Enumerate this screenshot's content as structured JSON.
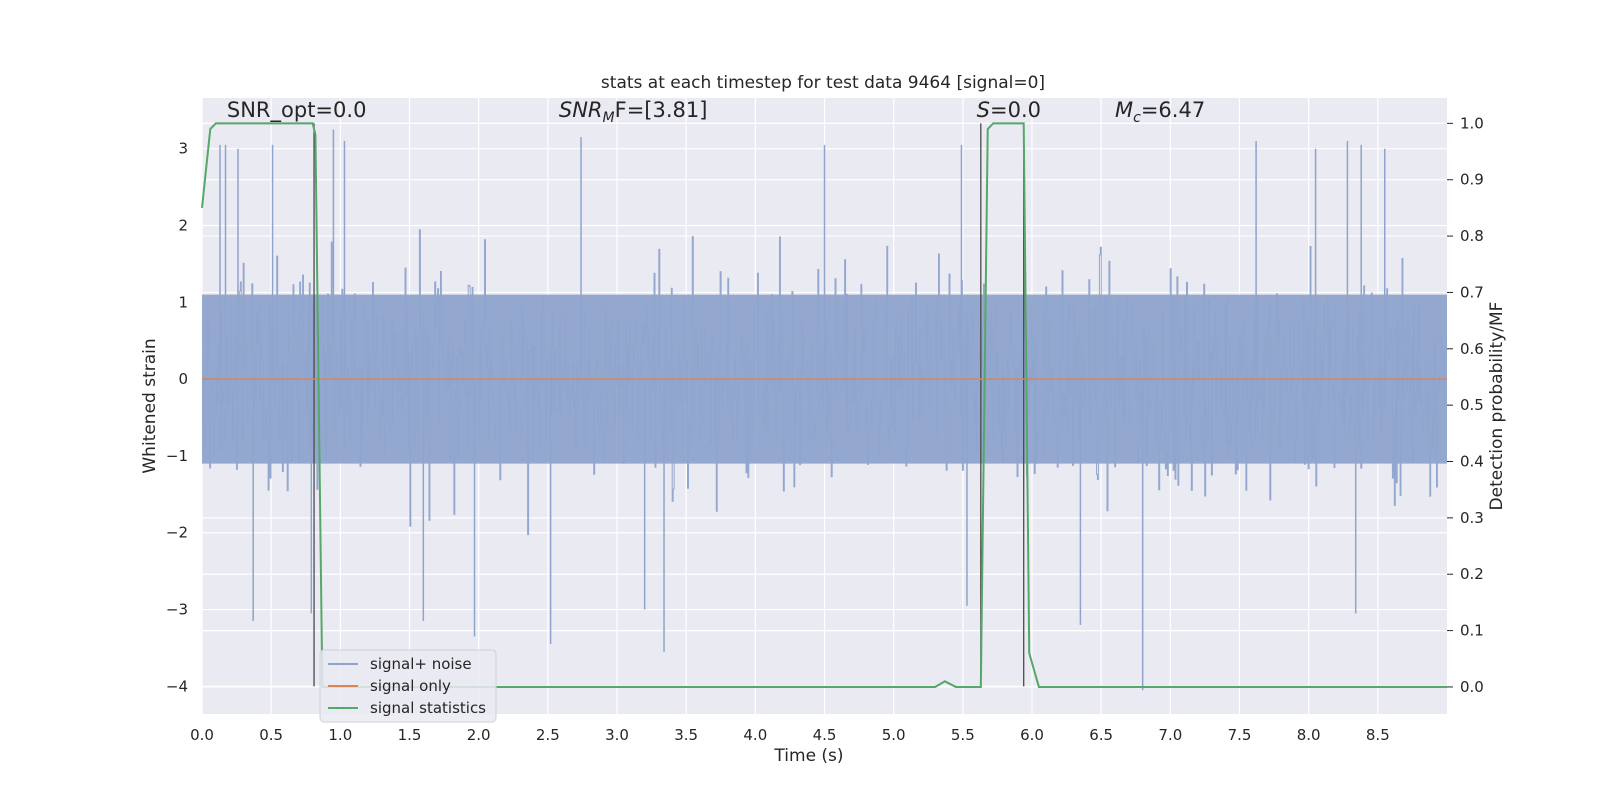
{
  "chart_data": {
    "type": "line",
    "title": "stats at each timestep for test data 9464 [signal=0]",
    "xlabel": "Time (s)",
    "ylabel": "Whitened strain",
    "y2label": "Detection probability/MF",
    "xlim": [
      0.0,
      9.0
    ],
    "ylim": [
      -4.36,
      3.66
    ],
    "y2lim": [
      -0.048,
      1.045
    ],
    "grid": true,
    "x_ticks": [
      0.0,
      0.5,
      1.0,
      1.5,
      2.0,
      2.5,
      3.0,
      3.5,
      4.0,
      4.5,
      5.0,
      5.5,
      6.0,
      6.5,
      7.0,
      7.5,
      8.0,
      8.5
    ],
    "x_tick_labels": [
      "0.0",
      "0.5",
      "1.0",
      "1.5",
      "2.0",
      "2.5",
      "3.0",
      "3.5",
      "4.0",
      "4.5",
      "5.0",
      "5.5",
      "6.0",
      "6.5",
      "7.0",
      "7.5",
      "8.0",
      "8.5"
    ],
    "y_ticks": [
      3,
      2,
      1,
      0,
      -1,
      -2,
      -3,
      -4
    ],
    "y_tick_labels": [
      "3",
      "2",
      "1",
      "0",
      "−1",
      "−2",
      "−3",
      "−4"
    ],
    "y2_ticks": [
      1.0,
      0.9,
      0.8,
      0.7,
      0.6,
      0.5,
      0.4,
      0.3,
      0.2,
      0.1,
      0.0
    ],
    "y2_tick_labels": [
      "1.0",
      "0.9",
      "0.8",
      "0.7",
      "0.6",
      "0.5",
      "0.4",
      "0.3",
      "0.2",
      "0.1",
      "0.0"
    ],
    "annotations": [
      {
        "text": "SNR_opt=0.0",
        "x": 0.18,
        "y": 3.45
      },
      {
        "text_main": "SNR",
        "text_sub": "M",
        "text_rest": "F=[3.81]",
        "italic": true,
        "x": 2.58,
        "y": 3.45
      },
      {
        "text_main": "S",
        "text_sub": "",
        "text_rest": "=0.0",
        "italic_main": true,
        "x": 5.6,
        "y": 3.45
      },
      {
        "text_main": "M",
        "text_sub": "c",
        "text_rest": "=6.47",
        "italic": true,
        "x": 6.6,
        "y": 3.45
      }
    ],
    "vertical_lines": [
      0.81,
      5.63,
      5.94
    ],
    "series": [
      {
        "name": "signal+ noise",
        "color": "#8fa4cc",
        "axis": "left",
        "kind": "noise",
        "spikes": [
          {
            "x": 0.13,
            "y": 3.05
          },
          {
            "x": 0.17,
            "y": 3.05
          },
          {
            "x": 0.26,
            "y": 3.0
          },
          {
            "x": 0.37,
            "y": -3.15
          },
          {
            "x": 0.51,
            "y": 3.05
          },
          {
            "x": 0.79,
            "y": -3.05
          },
          {
            "x": 0.95,
            "y": 3.25
          },
          {
            "x": 1.03,
            "y": 3.1
          },
          {
            "x": 1.6,
            "y": -3.15
          },
          {
            "x": 1.97,
            "y": -3.35
          },
          {
            "x": 2.52,
            "y": -3.45
          },
          {
            "x": 2.74,
            "y": 3.15
          },
          {
            "x": 3.2,
            "y": -3.0
          },
          {
            "x": 3.34,
            "y": -3.55
          },
          {
            "x": 4.5,
            "y": 3.05
          },
          {
            "x": 5.49,
            "y": 3.05
          },
          {
            "x": 5.53,
            "y": -2.95
          },
          {
            "x": 6.35,
            "y": -3.2
          },
          {
            "x": 6.8,
            "y": -4.05
          },
          {
            "x": 7.62,
            "y": 3.1
          },
          {
            "x": 8.05,
            "y": 3.0
          },
          {
            "x": 8.28,
            "y": 3.1
          },
          {
            "x": 8.34,
            "y": -3.05
          },
          {
            "x": 8.38,
            "y": 3.05
          },
          {
            "x": 8.55,
            "y": 3.0
          }
        ]
      },
      {
        "name": "signal only",
        "color": "#dd8452",
        "axis": "left",
        "x": [
          0.0,
          9.0
        ],
        "y": [
          0.0,
          0.0
        ]
      },
      {
        "name": "signal statistics",
        "color": "#55a868",
        "axis": "right",
        "x": [
          0.0,
          0.06,
          0.1,
          0.4,
          0.6,
          0.72,
          0.8,
          0.82,
          0.87,
          0.9,
          5.3,
          5.37,
          5.45,
          5.6,
          5.63,
          5.68,
          5.72,
          5.9,
          5.94,
          5.98,
          6.05,
          6.25,
          6.4,
          9.0
        ],
        "y": [
          0.85,
          0.99,
          1.0,
          1.0,
          1.0,
          1.0,
          1.0,
          0.98,
          0.0,
          0.0,
          0.0,
          0.01,
          0.0,
          0.0,
          0.0,
          0.99,
          1.0,
          1.0,
          1.0,
          0.06,
          0.0,
          0.0,
          0.0,
          0.0
        ]
      }
    ],
    "legend": {
      "placement": "lower-left",
      "entries": [
        {
          "label": "signal+ noise",
          "color": "#8fa4cc"
        },
        {
          "label": "signal only",
          "color": "#dd8452"
        },
        {
          "label": "signal statistics",
          "color": "#55a868"
        }
      ]
    }
  }
}
